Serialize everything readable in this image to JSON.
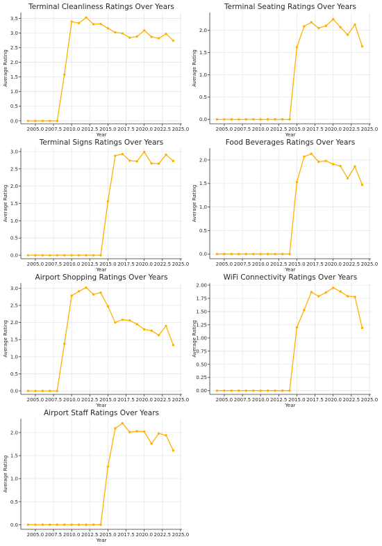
{
  "chart_data": [
    {
      "type": "line",
      "title": "Terminal Cleanliness Ratings Over Years",
      "xlabel": "Year",
      "ylabel": "Average Rating",
      "x": [
        2004,
        2005,
        2006,
        2007,
        2008,
        2009,
        2010,
        2011,
        2012,
        2013,
        2014,
        2015,
        2016,
        2017,
        2018,
        2019,
        2020,
        2021,
        2022,
        2023,
        2024
      ],
      "values": [
        0,
        0,
        0,
        0,
        0,
        1.58,
        3.39,
        3.34,
        3.53,
        3.3,
        3.31,
        3.16,
        3.02,
        2.99,
        2.84,
        2.88,
        3.09,
        2.87,
        2.82,
        2.97,
        2.74
      ],
      "xlim": [
        2003,
        2025.2
      ],
      "ylim": [
        -0.1,
        3.7
      ],
      "xticks": [
        "2005.0",
        "2007.5",
        "2010.0",
        "2012.5",
        "2015.0",
        "2017.5",
        "2020.0",
        "2022.5",
        "2025.0"
      ],
      "yticks": [
        "0.0",
        "0.5",
        "1.0",
        "1.5",
        "2.0",
        "2.5",
        "3.0",
        "3.5"
      ],
      "grid": true,
      "color": "#ffb000"
    },
    {
      "type": "line",
      "title": "Terminal Seating Ratings Over Years",
      "xlabel": "Year",
      "ylabel": "Average Rating",
      "x": [
        2004,
        2005,
        2006,
        2007,
        2008,
        2009,
        2010,
        2011,
        2012,
        2013,
        2014,
        2015,
        2016,
        2017,
        2018,
        2019,
        2020,
        2021,
        2022,
        2023,
        2024
      ],
      "values": [
        0,
        0,
        0,
        0,
        0,
        0,
        0,
        0,
        0,
        0,
        0,
        1.62,
        2.09,
        2.18,
        2.05,
        2.1,
        2.25,
        2.07,
        1.9,
        2.13,
        1.64
      ],
      "xlim": [
        2003,
        2025.2
      ],
      "ylim": [
        -0.1,
        2.4
      ],
      "xticks": [
        "2005.0",
        "2007.5",
        "2010.0",
        "2012.5",
        "2015.0",
        "2017.5",
        "2020.0",
        "2022.5",
        "2025.0"
      ],
      "yticks": [
        "0.0",
        "0.5",
        "1.0",
        "1.5",
        "2.0"
      ],
      "grid": true,
      "color": "#ffb000"
    },
    {
      "type": "line",
      "title": "Terminal Signs Ratings Over Years",
      "xlabel": "Year",
      "ylabel": "Average Rating",
      "x": [
        2004,
        2005,
        2006,
        2007,
        2008,
        2009,
        2010,
        2011,
        2012,
        2013,
        2014,
        2015,
        2016,
        2017,
        2018,
        2019,
        2020,
        2021,
        2022,
        2023,
        2024
      ],
      "values": [
        0,
        0,
        0,
        0,
        0,
        0,
        0,
        0,
        0,
        0,
        0,
        1.56,
        2.88,
        2.93,
        2.74,
        2.72,
        2.99,
        2.66,
        2.65,
        2.91,
        2.73
      ],
      "xlim": [
        2003,
        2025.2
      ],
      "ylim": [
        -0.1,
        3.1
      ],
      "xticks": [
        "2005.0",
        "2007.5",
        "2010.0",
        "2012.5",
        "2015.0",
        "2017.5",
        "2020.0",
        "2022.5",
        "2025.0"
      ],
      "yticks": [
        "0.0",
        "0.5",
        "1.0",
        "1.5",
        "2.0",
        "2.5",
        "3.0"
      ],
      "grid": true,
      "color": "#ffb000"
    },
    {
      "type": "line",
      "title": "Food Beverages Ratings Over Years",
      "xlabel": "Year",
      "ylabel": "Average Rating",
      "x": [
        2004,
        2005,
        2006,
        2007,
        2008,
        2009,
        2010,
        2011,
        2012,
        2013,
        2014,
        2015,
        2016,
        2017,
        2018,
        2019,
        2020,
        2021,
        2022,
        2023,
        2024
      ],
      "values": [
        0,
        0,
        0,
        0,
        0,
        0,
        0,
        0,
        0,
        0,
        0,
        1.53,
        2.07,
        2.13,
        1.96,
        1.98,
        1.91,
        1.87,
        1.61,
        1.86,
        1.47
      ],
      "xlim": [
        2003,
        2025.2
      ],
      "ylim": [
        -0.1,
        2.25
      ],
      "xticks": [
        "2005.0",
        "2007.5",
        "2010.0",
        "2012.5",
        "2015.0",
        "2017.5",
        "2020.0",
        "2022.5",
        "2025.0"
      ],
      "yticks": [
        "0.0",
        "0.5",
        "1.0",
        "1.5",
        "2.0"
      ],
      "grid": true,
      "color": "#ffb000"
    },
    {
      "type": "line",
      "title": "Airport Shopping Ratings Over Years",
      "xlabel": "Year",
      "ylabel": "Average Rating",
      "x": [
        2004,
        2005,
        2006,
        2007,
        2008,
        2009,
        2010,
        2011,
        2012,
        2013,
        2014,
        2015,
        2016,
        2017,
        2018,
        2019,
        2020,
        2021,
        2022,
        2023,
        2024
      ],
      "values": [
        0,
        0,
        0,
        0,
        0,
        1.38,
        2.78,
        2.91,
        3.02,
        2.82,
        2.87,
        2.47,
        2.0,
        2.08,
        2.06,
        1.95,
        1.8,
        1.76,
        1.63,
        1.9,
        1.34
      ],
      "xlim": [
        2003,
        2025.2
      ],
      "ylim": [
        -0.1,
        3.15
      ],
      "xticks": [
        "2005.0",
        "2007.5",
        "2010.0",
        "2012.5",
        "2015.0",
        "2017.5",
        "2020.0",
        "2022.5",
        "2025.0"
      ],
      "yticks": [
        "0.0",
        "0.5",
        "1.0",
        "1.5",
        "2.0",
        "2.5",
        "3.0"
      ],
      "grid": true,
      "color": "#ffb000"
    },
    {
      "type": "line",
      "title": "WiFi Connectivity Ratings Over Years",
      "xlabel": "Year",
      "ylabel": "Average Rating",
      "x": [
        2004,
        2005,
        2006,
        2007,
        2008,
        2009,
        2010,
        2011,
        2012,
        2013,
        2014,
        2015,
        2016,
        2017,
        2018,
        2019,
        2020,
        2021,
        2022,
        2023,
        2024
      ],
      "values": [
        0,
        0,
        0,
        0,
        0,
        0,
        0,
        0,
        0,
        0,
        0,
        1.2,
        1.53,
        1.87,
        1.79,
        1.86,
        1.95,
        1.88,
        1.79,
        1.78,
        1.19
      ],
      "xlim": [
        2003,
        2025.2
      ],
      "ylim": [
        -0.07,
        2.04
      ],
      "xticks": [
        "2005.0",
        "2007.5",
        "2010.0",
        "2012.5",
        "2015.0",
        "2017.5",
        "2020.0",
        "2022.5",
        "2025.0"
      ],
      "yticks": [
        "0.00",
        "0.25",
        "0.50",
        "0.75",
        "1.00",
        "1.25",
        "1.50",
        "1.75",
        "2.00"
      ],
      "grid": true,
      "color": "#ffb000"
    },
    {
      "type": "line",
      "title": "Airport Staff Ratings Over Years",
      "xlabel": "Year",
      "ylabel": "Average Rating",
      "x": [
        2004,
        2005,
        2006,
        2007,
        2008,
        2009,
        2010,
        2011,
        2012,
        2013,
        2014,
        2015,
        2016,
        2017,
        2018,
        2019,
        2020,
        2021,
        2022,
        2023,
        2024
      ],
      "values": [
        0,
        0,
        0,
        0,
        0,
        0,
        0,
        0,
        0,
        0,
        0,
        1.26,
        2.09,
        2.2,
        2.01,
        2.03,
        2.02,
        1.76,
        1.98,
        1.94,
        1.61
      ],
      "xlim": [
        2003,
        2025.2
      ],
      "ylim": [
        -0.1,
        2.3
      ],
      "xticks": [
        "2005.0",
        "2007.5",
        "2010.0",
        "2012.5",
        "2015.0",
        "2017.5",
        "2020.0",
        "2022.5",
        "2025.0"
      ],
      "yticks": [
        "0.0",
        "0.5",
        "1.0",
        "1.5",
        "2.0"
      ],
      "grid": true,
      "color": "#ffb000"
    }
  ]
}
